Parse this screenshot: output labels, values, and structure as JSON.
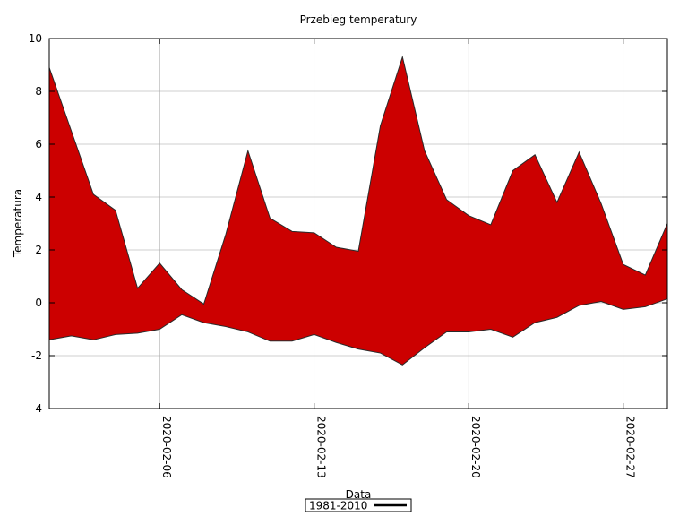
{
  "chart_data": {
    "type": "area",
    "title": "Przebieg temperatury",
    "xlabel": "Data",
    "ylabel": "Temperatura",
    "ylim": [
      -4,
      10
    ],
    "yticks": [
      -4,
      -2,
      0,
      2,
      4,
      6,
      8,
      10
    ],
    "ytick_labels": [
      "-4",
      "-2",
      "0",
      "2",
      "4",
      "6",
      "8",
      "10"
    ],
    "xlim": [
      "2020-02-01",
      "2020-02-29"
    ],
    "xticks": [
      "2020-02-06",
      "2020-02-13",
      "2020-02-20",
      "2020-02-27"
    ],
    "grid": true,
    "fill_color": "#cc0000",
    "legend": {
      "position": "bottom-center",
      "entries": [
        "1981-2010"
      ]
    },
    "x": [
      "2020-02-01",
      "2020-02-02",
      "2020-02-03",
      "2020-02-04",
      "2020-02-05",
      "2020-02-06",
      "2020-02-07",
      "2020-02-08",
      "2020-02-09",
      "2020-02-10",
      "2020-02-11",
      "2020-02-12",
      "2020-02-13",
      "2020-02-14",
      "2020-02-15",
      "2020-02-16",
      "2020-02-17",
      "2020-02-18",
      "2020-02-19",
      "2020-02-20",
      "2020-02-21",
      "2020-02-22",
      "2020-02-23",
      "2020-02-24",
      "2020-02-25",
      "2020-02-26",
      "2020-02-27",
      "2020-02-28",
      "2020-02-29"
    ],
    "series": [
      {
        "values": [
          8.9,
          6.5,
          4.1,
          3.5,
          0.55,
          1.5,
          0.5,
          -0.05,
          2.6,
          5.75,
          3.2,
          2.7,
          2.65,
          2.1,
          1.95,
          6.7,
          9.3,
          5.75,
          3.9,
          3.3,
          2.95,
          5.0,
          5.6,
          3.8,
          5.7,
          3.75,
          1.45,
          1.05,
          3.0
        ]
      },
      {
        "values": [
          -1.4,
          -1.25,
          -1.4,
          -1.2,
          -1.15,
          -1.0,
          -0.45,
          -0.75,
          -0.9,
          -1.1,
          -1.45,
          -1.45,
          -1.2,
          -1.5,
          -1.75,
          -1.9,
          -2.35,
          -1.7,
          -1.1,
          -1.1,
          -1.0,
          -1.3,
          -0.75,
          -0.55,
          -0.1,
          0.05,
          -0.25,
          -0.15,
          0.15
        ]
      }
    ]
  }
}
